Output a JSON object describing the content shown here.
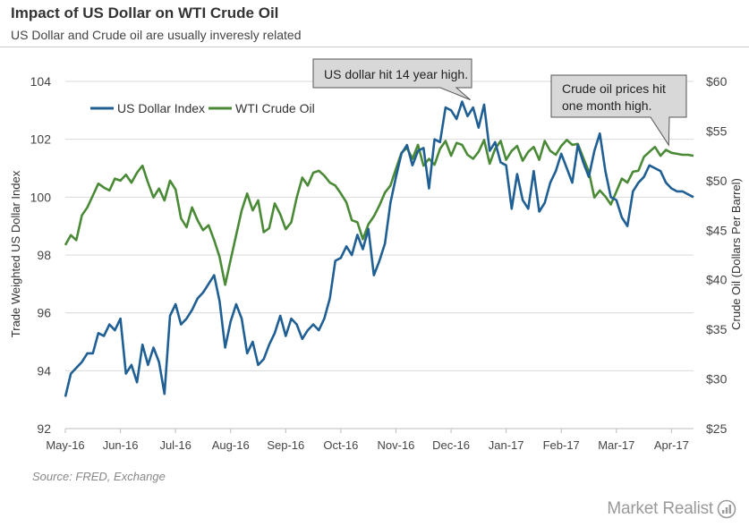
{
  "header": {
    "title": "Impact of US Dollar on WTI Crude Oil",
    "subtitle": "US Dollar and Crude oil are usually inveresly related"
  },
  "footer": {
    "source": "Source: FRED, Exchange",
    "brand": "Market Realist"
  },
  "colors": {
    "usd": "#1f5f94",
    "oil": "#4a8a36",
    "grid": "#dadada",
    "callout_bg": "#d8d8d8"
  },
  "chart_data": {
    "type": "line",
    "xlabel": "",
    "ylabel_left": "Trade Weighted US Dollar Index",
    "ylabel_right": "Crude Oil (Dollars  Per Barrel)",
    "x_ticks": [
      "May-16",
      "Jun-16",
      "Jul-16",
      "Aug-16",
      "Sep-16",
      "Oct-16",
      "Nov-16",
      "Dec-16",
      "Jan-17",
      "Feb-17",
      "Mar-17",
      "Apr-17"
    ],
    "y_left": {
      "min": 92,
      "max": 104,
      "ticks": [
        "92",
        "94",
        "96",
        "98",
        "100",
        "102",
        "104"
      ]
    },
    "y_right": {
      "min": 25,
      "max": 60,
      "ticks": [
        "$25",
        "$30",
        "$35",
        "$40",
        "$45",
        "$50",
        "$55",
        "$60"
      ]
    },
    "grid": "horizontal",
    "legend_position": "top-left",
    "series": [
      {
        "name": "US Dollar Index",
        "axis": "left",
        "x": [
          0,
          0.1,
          0.2,
          0.3,
          0.4,
          0.5,
          0.6,
          0.7,
          0.8,
          0.9,
          1.0,
          1.1,
          1.2,
          1.3,
          1.4,
          1.5,
          1.6,
          1.7,
          1.8,
          1.9,
          2.0,
          2.1,
          2.2,
          2.3,
          2.4,
          2.5,
          2.6,
          2.7,
          2.8,
          2.9,
          3.0,
          3.1,
          3.2,
          3.3,
          3.4,
          3.5,
          3.6,
          3.7,
          3.8,
          3.9,
          4.0,
          4.1,
          4.2,
          4.3,
          4.4,
          4.5,
          4.6,
          4.7,
          4.8,
          4.9,
          5.0,
          5.1,
          5.2,
          5.3,
          5.4,
          5.5,
          5.6,
          5.7,
          5.8,
          5.9,
          6.0,
          6.1,
          6.2,
          6.3,
          6.4,
          6.5,
          6.6,
          6.7,
          6.8,
          6.9,
          7.0,
          7.1,
          7.2,
          7.3,
          7.4,
          7.5,
          7.6,
          7.7,
          7.8,
          7.9,
          8.0,
          8.1,
          8.2,
          8.3,
          8.4,
          8.5,
          8.6,
          8.7,
          8.8,
          8.9,
          9.0,
          9.1,
          9.2,
          9.3,
          9.4,
          9.5,
          9.6,
          9.7,
          9.8,
          9.9,
          10.0,
          10.1,
          10.2,
          10.3,
          10.4,
          10.5,
          10.6,
          10.7,
          10.8,
          10.9,
          11.0,
          11.1,
          11.2,
          11.3,
          11.4
        ],
        "values": [
          93.1,
          93.9,
          94.1,
          94.3,
          94.6,
          94.6,
          95.3,
          95.2,
          95.6,
          95.4,
          95.8,
          93.9,
          94.2,
          93.6,
          94.9,
          94.2,
          94.8,
          94.3,
          93.2,
          95.9,
          96.3,
          95.6,
          95.8,
          96.1,
          96.5,
          96.7,
          97.0,
          97.3,
          96.4,
          94.8,
          95.7,
          96.3,
          95.8,
          94.6,
          95.0,
          94.2,
          94.4,
          94.9,
          95.3,
          95.9,
          95.2,
          95.8,
          95.6,
          95.1,
          95.4,
          95.6,
          95.4,
          95.8,
          96.5,
          97.8,
          97.9,
          98.3,
          98.0,
          98.7,
          98.2,
          98.9,
          97.3,
          97.8,
          98.4,
          99.8,
          100.7,
          101.5,
          101.8,
          101.1,
          101.6,
          101.7,
          100.3,
          102.0,
          101.9,
          103.1,
          103.0,
          102.7,
          103.3,
          102.8,
          103.1,
          102.4,
          103.2,
          101.6,
          101.9,
          101.2,
          101.1,
          99.6,
          100.8,
          99.9,
          99.6,
          100.9,
          99.5,
          99.8,
          100.5,
          100.9,
          101.5,
          101.0,
          100.5,
          101.8,
          101.2,
          100.7,
          101.6,
          102.2,
          100.9,
          100.0,
          99.9,
          99.3,
          99.0,
          100.2,
          100.5,
          100.7,
          101.1,
          101.0,
          100.9,
          100.5,
          100.3,
          100.2,
          100.2,
          100.1,
          100.0
        ]
      },
      {
        "name": "WTI Crude Oil",
        "axis": "right",
        "x": [
          0,
          0.1,
          0.2,
          0.3,
          0.4,
          0.5,
          0.6,
          0.7,
          0.8,
          0.9,
          1.0,
          1.1,
          1.2,
          1.3,
          1.4,
          1.5,
          1.6,
          1.7,
          1.8,
          1.9,
          2.0,
          2.1,
          2.2,
          2.3,
          2.4,
          2.5,
          2.6,
          2.7,
          2.8,
          2.9,
          3.0,
          3.1,
          3.2,
          3.3,
          3.4,
          3.5,
          3.6,
          3.7,
          3.8,
          3.9,
          4.0,
          4.1,
          4.2,
          4.3,
          4.4,
          4.5,
          4.6,
          4.7,
          4.8,
          4.9,
          5.0,
          5.1,
          5.2,
          5.3,
          5.4,
          5.5,
          5.6,
          5.7,
          5.8,
          5.9,
          6.0,
          6.1,
          6.2,
          6.3,
          6.4,
          6.5,
          6.6,
          6.7,
          6.8,
          6.9,
          7.0,
          7.1,
          7.2,
          7.3,
          7.4,
          7.5,
          7.6,
          7.7,
          7.8,
          7.9,
          8.0,
          8.1,
          8.2,
          8.3,
          8.4,
          8.5,
          8.6,
          8.7,
          8.8,
          8.9,
          9.0,
          9.1,
          9.2,
          9.3,
          9.4,
          9.5,
          9.6,
          9.7,
          9.8,
          9.9,
          10.0,
          10.1,
          10.2,
          10.3,
          10.4,
          10.5,
          10.6,
          10.7,
          10.8,
          10.9,
          11.0,
          11.1,
          11.2,
          11.3,
          11.4
        ],
        "values": [
          43.5,
          44.5,
          44.0,
          46.5,
          47.3,
          48.5,
          49.7,
          49.3,
          49.0,
          50.2,
          50.0,
          50.6,
          49.8,
          50.8,
          51.5,
          49.8,
          48.3,
          49.2,
          48.0,
          50.0,
          49.1,
          46.2,
          45.3,
          47.3,
          46.0,
          45.0,
          45.5,
          44.0,
          42.3,
          39.5,
          42.0,
          44.5,
          47.0,
          48.7,
          47.0,
          48.0,
          44.8,
          45.2,
          47.7,
          46.6,
          45.1,
          45.8,
          48.3,
          50.3,
          49.5,
          50.8,
          51.0,
          50.5,
          49.8,
          49.5,
          48.7,
          47.8,
          46.0,
          45.8,
          44.1,
          45.6,
          46.4,
          47.5,
          48.8,
          49.5,
          51.2,
          52.8,
          53.3,
          52.2,
          53.6,
          51.5,
          52.2,
          51.6,
          53.2,
          54.0,
          52.5,
          53.8,
          53.6,
          52.6,
          52.2,
          52.9,
          54.1,
          51.7,
          53.2,
          54.0,
          52.1,
          53.0,
          53.5,
          52.0,
          52.9,
          53.4,
          52.1,
          54.0,
          53.0,
          52.6,
          53.5,
          54.1,
          53.6,
          53.7,
          52.3,
          50.9,
          48.3,
          49.0,
          48.4,
          47.6,
          48.9,
          50.2,
          49.8,
          50.9,
          51.0,
          52.4,
          52.9,
          53.4,
          52.5,
          53.1,
          52.8,
          52.7,
          52.6,
          52.6,
          52.5
        ]
      }
    ],
    "annotations": [
      {
        "text": "US dollar hit 14 year high.",
        "target_x": 7.35,
        "target_series": 0
      },
      {
        "text": "Crude oil prices hit one month high.",
        "target_x": 10.95,
        "target_series": 1
      }
    ]
  }
}
